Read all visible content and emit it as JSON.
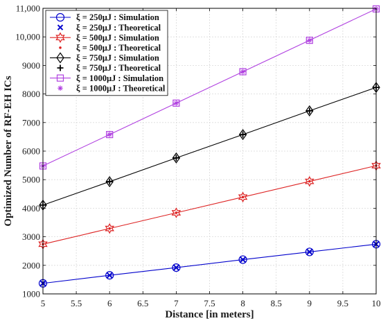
{
  "chart_data": {
    "type": "line",
    "xlabel": "Distance [in meters]",
    "ylabel": "Optimized Number of RF-EH ICs",
    "xlim": [
      5,
      10
    ],
    "ylim": [
      1000,
      11000
    ],
    "x_ticks": [
      "5",
      "5.5",
      "6",
      "6.5",
      "7",
      "7.5",
      "8",
      "8.5",
      "9",
      "9.5",
      "10"
    ],
    "y_ticks": [
      "1000",
      "2000",
      "3000",
      "4000",
      "5000",
      "6000",
      "7000",
      "8000",
      "9000",
      "10,000",
      "11,000"
    ],
    "grid": true,
    "legend_position": "top-left",
    "x": [
      5,
      6,
      7,
      8,
      9,
      10
    ],
    "series": [
      {
        "name": "ξ = 250μJ : Simulation",
        "values": [
          1370,
          1650,
          1920,
          2200,
          2470,
          2740
        ],
        "color": "#0000cc",
        "marker": "circle",
        "kind": "simulation"
      },
      {
        "name": "ξ = 250μJ : Theoretical",
        "values": [
          1370,
          1650,
          1920,
          2200,
          2470,
          2740
        ],
        "color": "#0000cc",
        "marker": "x",
        "kind": "theoretical"
      },
      {
        "name": "ξ = 500μJ : Simulation",
        "values": [
          2740,
          3290,
          3840,
          4390,
          4940,
          5490
        ],
        "color": "#dd2222",
        "marker": "hexagram",
        "kind": "simulation"
      },
      {
        "name": "ξ = 500μJ : Theoretical",
        "values": [
          2740,
          3290,
          3840,
          4390,
          4940,
          5490
        ],
        "color": "#dd2222",
        "marker": "dot",
        "kind": "theoretical"
      },
      {
        "name": "ξ = 750μJ : Simulation",
        "values": [
          4110,
          4930,
          5760,
          6580,
          7410,
          8230
        ],
        "color": "#000000",
        "marker": "diamond",
        "kind": "simulation"
      },
      {
        "name": "ξ = 750μJ : Theoretical",
        "values": [
          4110,
          4930,
          5760,
          6580,
          7410,
          8230
        ],
        "color": "#000000",
        "marker": "plus",
        "kind": "theoretical"
      },
      {
        "name": "ξ = 1000μJ : Simulation",
        "values": [
          5480,
          6580,
          7680,
          8780,
          9880,
          10980
        ],
        "color": "#b040e0",
        "marker": "square",
        "kind": "simulation"
      },
      {
        "name": "ξ = 1000μJ : Theoretical",
        "values": [
          5480,
          6580,
          7680,
          8780,
          9880,
          10980
        ],
        "color": "#b040e0",
        "marker": "asterisk",
        "kind": "theoretical"
      }
    ]
  }
}
